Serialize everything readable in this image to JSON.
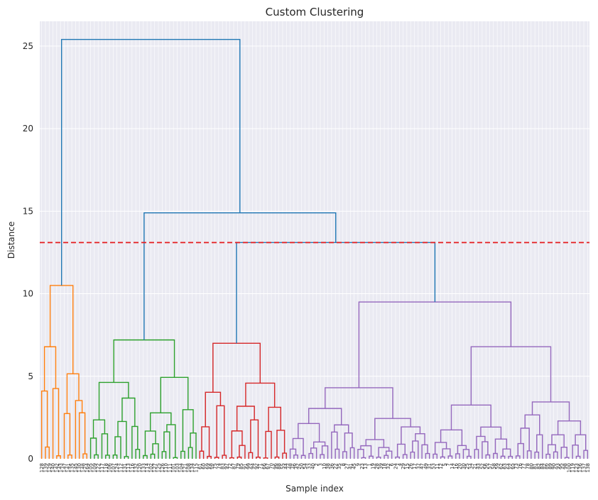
{
  "chart_data": {
    "type": "dendrogram",
    "title": "Custom Clustering",
    "xlabel": "Sample index",
    "ylabel": "Distance",
    "ylim": [
      0,
      26.5
    ],
    "yticks": [
      0,
      5,
      10,
      15,
      20,
      25
    ],
    "grid": true,
    "cut_line": {
      "value": 13.1,
      "color": "#e41a1c",
      "style": "dashed"
    },
    "colors": {
      "root": "#1f77b4",
      "orange": "#ff7f0e",
      "green": "#2ca02c",
      "red": "#d62728",
      "purple": "#9467bd"
    },
    "top_merges": [
      {
        "name": "root",
        "height": 25.4,
        "children": [
          "orange_cluster",
          "rest"
        ]
      },
      {
        "name": "rest",
        "height": 14.9,
        "children": [
          "green_cluster",
          "red_purple"
        ]
      },
      {
        "name": "red_purple",
        "height": 13.1,
        "children": [
          "red_cluster",
          "purple_cluster"
        ]
      }
    ],
    "clusters": [
      {
        "name": "orange_cluster",
        "color": "orange",
        "merge_height": 10.5,
        "sub_merges": [
          5.0,
          5.4,
          3.5,
          3.0,
          2.5,
          2.1,
          2.0
        ]
      },
      {
        "name": "green_cluster",
        "color": "green",
        "merge_height": 7.2,
        "sub_merges": [
          3.6,
          5.5,
          3.0,
          3.8,
          2.5,
          1.6
        ]
      },
      {
        "name": "red_cluster",
        "color": "red",
        "merge_height": 7.0,
        "sub_merges": [
          3.4,
          3.4,
          2.2,
          2.3,
          1.9,
          1.9
        ]
      },
      {
        "name": "purple_cluster",
        "color": "purple",
        "merge_height": 9.5,
        "sub_merges": [
          4.2,
          5.5,
          3.1,
          3.0,
          4.9,
          2.3,
          1.8,
          2.4
        ]
      }
    ],
    "leaf_labels": [
      "128",
      "139",
      "129",
      "140",
      "142",
      "143",
      "147",
      "141",
      "135",
      "145",
      "130",
      "148",
      "164",
      "105",
      "109",
      "122",
      "117",
      "118",
      "106",
      "107",
      "124",
      "112",
      "131",
      "113",
      "116",
      "132",
      "120",
      "133",
      "114",
      "102",
      "127",
      "125",
      "126",
      "110",
      "111",
      "101",
      "103",
      "104",
      "121",
      "108",
      "134",
      "115",
      "61",
      "60",
      "69",
      "68",
      "75",
      "74",
      "83",
      "97",
      "72",
      "87",
      "79",
      "85",
      "91",
      "99",
      "94",
      "92",
      "71",
      "66",
      "67",
      "70",
      "96",
      "88",
      "55",
      "44",
      "48",
      "46",
      "42",
      "50",
      "54",
      "33",
      "40",
      "2",
      "3",
      "10",
      "38",
      "36",
      "22",
      "35",
      "8",
      "27",
      "41",
      "45",
      "9",
      "23",
      "13",
      "1",
      "19",
      "28",
      "39",
      "18",
      "32",
      "6",
      "24",
      "4",
      "29",
      "15",
      "26",
      "17",
      "37",
      "47",
      "49",
      "31",
      "53",
      "11",
      "12",
      "5",
      "7",
      "14",
      "16",
      "20",
      "30",
      "25",
      "34",
      "21",
      "43",
      "52",
      "56",
      "57",
      "58",
      "59",
      "62",
      "63",
      "64",
      "65",
      "73",
      "76",
      "77",
      "78",
      "80",
      "81",
      "82",
      "84",
      "86",
      "89",
      "90",
      "93",
      "95",
      "98",
      "100",
      "119",
      "123",
      "136",
      "137",
      "138"
    ]
  }
}
